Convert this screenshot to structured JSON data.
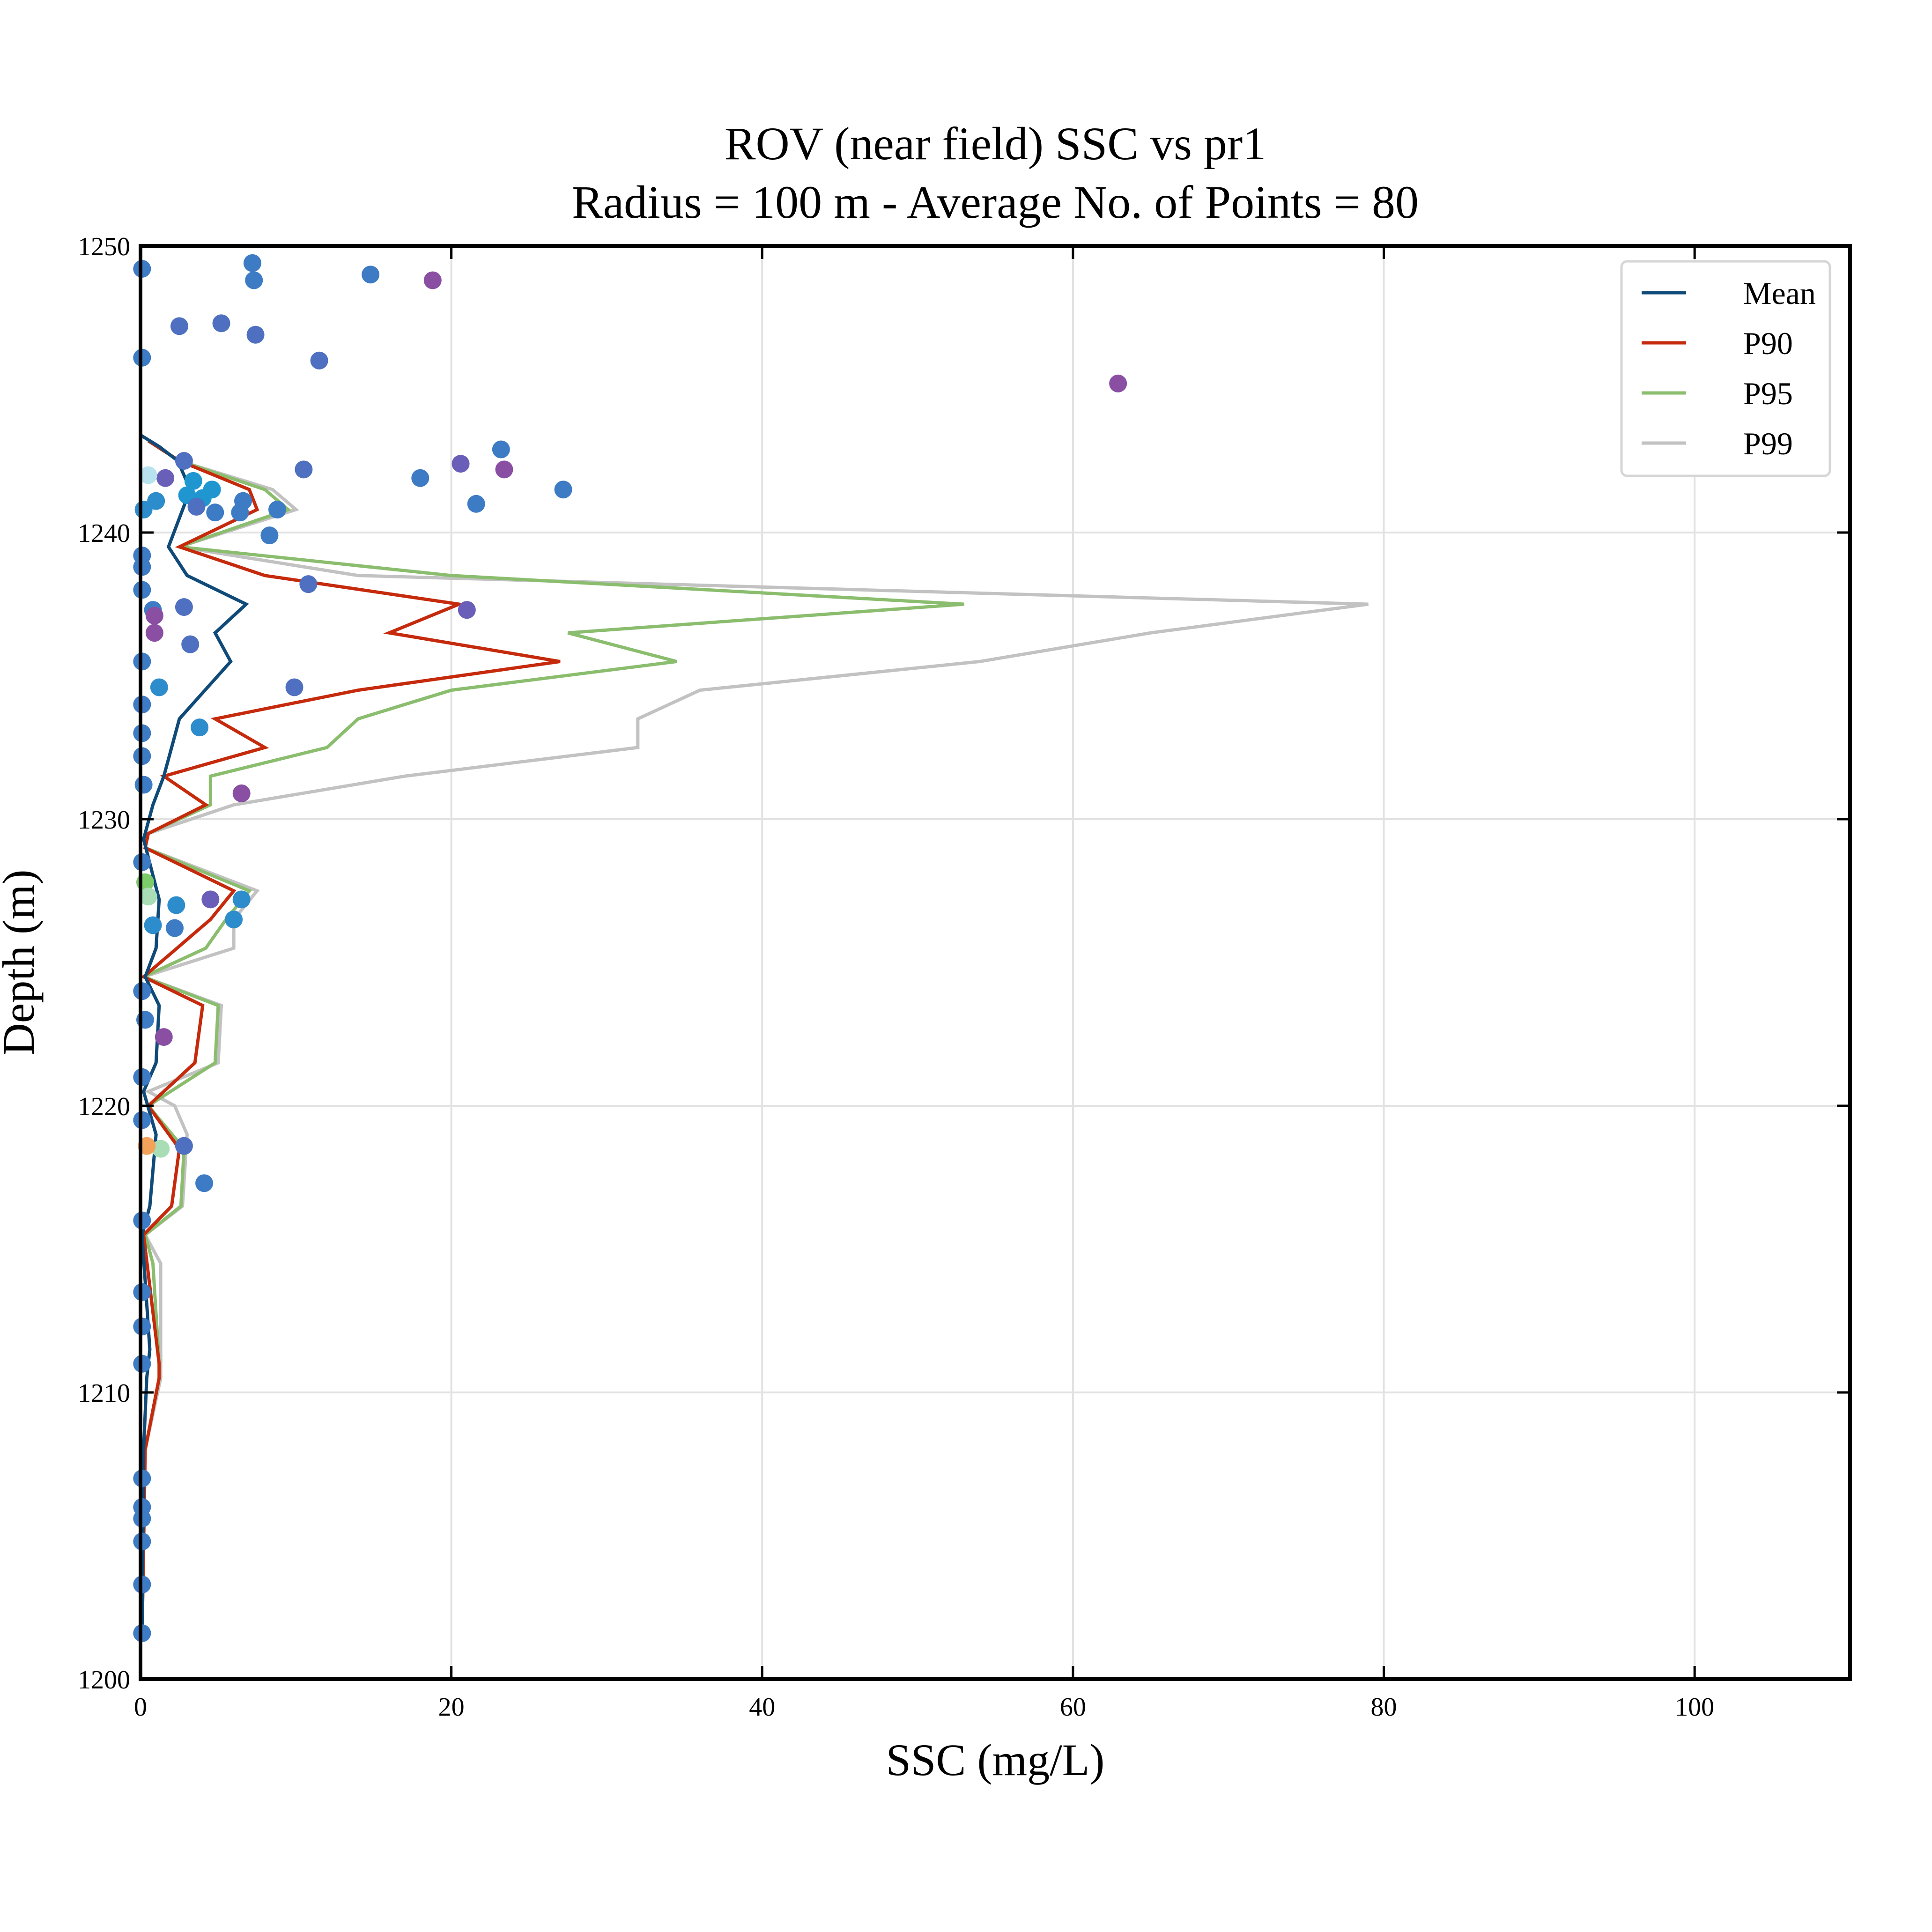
{
  "chart_data": {
    "type": "line",
    "title": "ROV (near field) SSC vs pr1",
    "subtitle": "Radius = 100 m - Average No. of Points = 80",
    "xlabel": "SSC (mg/L)",
    "ylabel": "Depth (m)",
    "xlim": [
      0,
      110
    ],
    "ylim": [
      1200,
      1250
    ],
    "x_ticks": [
      0,
      20,
      40,
      60,
      80,
      100
    ],
    "y_ticks": [
      1200,
      1210,
      1220,
      1230,
      1240,
      1250
    ],
    "grid": true,
    "legend_position": "top-right",
    "series": [
      {
        "name": "Mean",
        "color": "#0f4a78",
        "points": [
          [
            0.1,
            1201.5
          ],
          [
            0.2,
            1208
          ],
          [
            0.4,
            1210.5
          ],
          [
            0.6,
            1211.5
          ],
          [
            0.1,
            1215.5
          ],
          [
            0.6,
            1216.5
          ],
          [
            1.0,
            1219.0
          ],
          [
            0.2,
            1220.5
          ],
          [
            1.0,
            1221.5
          ],
          [
            1.2,
            1223.5
          ],
          [
            0.3,
            1224.5
          ],
          [
            1.0,
            1225.5
          ],
          [
            1.2,
            1227.2
          ],
          [
            0.2,
            1229.3
          ],
          [
            0.8,
            1230.5
          ],
          [
            1.5,
            1231.5
          ],
          [
            2.5,
            1233.5
          ],
          [
            5.8,
            1235.5
          ],
          [
            4.8,
            1236.5
          ],
          [
            6.8,
            1237.5
          ],
          [
            3.0,
            1238.5
          ],
          [
            1.8,
            1239.5
          ],
          [
            3.2,
            1241.5
          ],
          [
            2.4,
            1242.5
          ],
          [
            1.2,
            1243.0
          ],
          [
            0.0,
            1243.4
          ]
        ]
      },
      {
        "name": "P90",
        "color": "#c52a0c",
        "points": [
          [
            0.1,
            1201.5
          ],
          [
            0.3,
            1208
          ],
          [
            1.2,
            1210.5
          ],
          [
            1.2,
            1211.0
          ],
          [
            0.2,
            1215.5
          ],
          [
            2.0,
            1216.5
          ],
          [
            2.5,
            1218.5
          ],
          [
            0.5,
            1220.0
          ],
          [
            3.5,
            1221.5
          ],
          [
            4.0,
            1223.5
          ],
          [
            0.2,
            1224.5
          ],
          [
            4.5,
            1226.5
          ],
          [
            6.0,
            1227.5
          ],
          [
            0.3,
            1229.0
          ],
          [
            0.5,
            1229.5
          ],
          [
            4.2,
            1230.5
          ],
          [
            1.5,
            1231.5
          ],
          [
            8.0,
            1232.5
          ],
          [
            4.8,
            1233.5
          ],
          [
            14.0,
            1234.5
          ],
          [
            27.0,
            1235.5
          ],
          [
            16.0,
            1236.5
          ],
          [
            20.5,
            1237.5
          ],
          [
            8.0,
            1238.5
          ],
          [
            2.5,
            1239.5
          ],
          [
            7.5,
            1240.8
          ],
          [
            7.0,
            1241.5
          ],
          [
            2.5,
            1242.5
          ],
          [
            0.5,
            1243.2
          ]
        ]
      },
      {
        "name": "P95",
        "color": "#8bbd6e",
        "points": [
          [
            0.1,
            1201.5
          ],
          [
            0.3,
            1208
          ],
          [
            1.2,
            1210.5
          ],
          [
            1.2,
            1211.0
          ],
          [
            0.8,
            1214.5
          ],
          [
            0.3,
            1215.5
          ],
          [
            2.6,
            1216.5
          ],
          [
            2.8,
            1218.5
          ],
          [
            0.5,
            1220.0
          ],
          [
            4.8,
            1221.5
          ],
          [
            5.0,
            1223.5
          ],
          [
            0.2,
            1224.5
          ],
          [
            4.2,
            1225.5
          ],
          [
            5.5,
            1226.5
          ],
          [
            7.0,
            1227.5
          ],
          [
            0.3,
            1229.0
          ],
          [
            0.5,
            1229.5
          ],
          [
            4.5,
            1230.5
          ],
          [
            4.5,
            1231.5
          ],
          [
            12.0,
            1232.5
          ],
          [
            14.0,
            1233.5
          ],
          [
            20.0,
            1234.5
          ],
          [
            34.5,
            1235.5
          ],
          [
            27.5,
            1236.5
          ],
          [
            53.0,
            1237.5
          ],
          [
            20.0,
            1238.5
          ],
          [
            2.5,
            1239.5
          ],
          [
            9.5,
            1240.8
          ],
          [
            8.0,
            1241.5
          ],
          [
            2.5,
            1242.5
          ],
          [
            0.5,
            1243.2
          ]
        ]
      },
      {
        "name": "P99",
        "color": "#c2c2c2",
        "points": [
          [
            0.1,
            1201.5
          ],
          [
            0.3,
            1208
          ],
          [
            1.3,
            1210.5
          ],
          [
            1.3,
            1211.0
          ],
          [
            1.3,
            1214.5
          ],
          [
            0.3,
            1215.5
          ],
          [
            2.7,
            1216.5
          ],
          [
            3.0,
            1219.0
          ],
          [
            2.2,
            1220.0
          ],
          [
            0.5,
            1220.5
          ],
          [
            5.0,
            1221.5
          ],
          [
            5.2,
            1223.5
          ],
          [
            0.2,
            1224.5
          ],
          [
            6.0,
            1225.5
          ],
          [
            6.0,
            1226.5
          ],
          [
            7.5,
            1227.5
          ],
          [
            0.3,
            1229.0
          ],
          [
            0.5,
            1229.5
          ],
          [
            6.0,
            1230.5
          ],
          [
            17.0,
            1231.5
          ],
          [
            32.0,
            1232.5
          ],
          [
            32.0,
            1233.5
          ],
          [
            36.0,
            1234.5
          ],
          [
            54.0,
            1235.5
          ],
          [
            65.0,
            1236.5
          ],
          [
            79.0,
            1237.5
          ],
          [
            14.0,
            1238.5
          ],
          [
            2.5,
            1239.5
          ],
          [
            10.0,
            1240.8
          ],
          [
            8.5,
            1241.5
          ],
          [
            2.5,
            1242.5
          ],
          [
            0.5,
            1243.2
          ]
        ]
      }
    ],
    "scatter": [
      {
        "x": 7.2,
        "y": 1249.4,
        "color": "#3d7bc4"
      },
      {
        "x": 14.8,
        "y": 1249.0,
        "color": "#3d7bc4"
      },
      {
        "x": 18.8,
        "y": 1248.8,
        "color": "#8a4fa3"
      },
      {
        "x": 7.3,
        "y": 1248.8,
        "color": "#3d7bc4"
      },
      {
        "x": 5.2,
        "y": 1247.3,
        "color": "#4f6fc0"
      },
      {
        "x": 2.5,
        "y": 1247.2,
        "color": "#4f6fc0"
      },
      {
        "x": 7.4,
        "y": 1246.9,
        "color": "#4f6fc0"
      },
      {
        "x": 11.5,
        "y": 1246.0,
        "color": "#4f6fc0"
      },
      {
        "x": 62.9,
        "y": 1245.2,
        "color": "#8a4fa3"
      },
      {
        "x": 23.2,
        "y": 1242.9,
        "color": "#3d7bc4"
      },
      {
        "x": 20.6,
        "y": 1242.4,
        "color": "#6a5fb8"
      },
      {
        "x": 23.4,
        "y": 1242.2,
        "color": "#8a4fa3"
      },
      {
        "x": 10.5,
        "y": 1242.2,
        "color": "#4f6fc0"
      },
      {
        "x": 18.0,
        "y": 1241.9,
        "color": "#3d7bc4"
      },
      {
        "x": 27.2,
        "y": 1241.5,
        "color": "#3d7bc4"
      },
      {
        "x": 21.6,
        "y": 1241.0,
        "color": "#3d7bc4"
      },
      {
        "x": 2.8,
        "y": 1242.5,
        "color": "#4f6fc0"
      },
      {
        "x": 1.6,
        "y": 1241.9,
        "color": "#6a5fb8"
      },
      {
        "x": 0.5,
        "y": 1242.0,
        "color": "#b8e3ee"
      },
      {
        "x": 3.4,
        "y": 1241.8,
        "color": "#1f96d0"
      },
      {
        "x": 4.6,
        "y": 1241.5,
        "color": "#1f96d0"
      },
      {
        "x": 3.0,
        "y": 1241.3,
        "color": "#1f96d0"
      },
      {
        "x": 4.0,
        "y": 1241.2,
        "color": "#1f96d0"
      },
      {
        "x": 1.0,
        "y": 1241.1,
        "color": "#2d8ccc"
      },
      {
        "x": 3.6,
        "y": 1240.9,
        "color": "#4f6fc0"
      },
      {
        "x": 6.6,
        "y": 1241.1,
        "color": "#3d7bc4"
      },
      {
        "x": 4.8,
        "y": 1240.7,
        "color": "#3d7bc4"
      },
      {
        "x": 6.4,
        "y": 1240.7,
        "color": "#3d7bc4"
      },
      {
        "x": 8.8,
        "y": 1240.8,
        "color": "#3d7bc4"
      },
      {
        "x": 8.3,
        "y": 1239.9,
        "color": "#3d7bc4"
      },
      {
        "x": 0.2,
        "y": 1240.8,
        "color": "#2d8ccc"
      },
      {
        "x": 10.8,
        "y": 1238.2,
        "color": "#4f6fc0"
      },
      {
        "x": 21.0,
        "y": 1237.3,
        "color": "#6a5fb8"
      },
      {
        "x": 2.8,
        "y": 1237.4,
        "color": "#4f6fc0"
      },
      {
        "x": 0.8,
        "y": 1237.3,
        "color": "#3d7bc4"
      },
      {
        "x": 0.9,
        "y": 1237.1,
        "color": "#8a4fa3"
      },
      {
        "x": 0.9,
        "y": 1236.5,
        "color": "#8a4fa3"
      },
      {
        "x": 3.2,
        "y": 1236.1,
        "color": "#4f6fc0"
      },
      {
        "x": 9.9,
        "y": 1234.6,
        "color": "#4f6fc0"
      },
      {
        "x": 1.2,
        "y": 1234.6,
        "color": "#2d8ccc"
      },
      {
        "x": 3.8,
        "y": 1233.2,
        "color": "#2d8ccc"
      },
      {
        "x": 6.5,
        "y": 1230.9,
        "color": "#8a4fa3"
      },
      {
        "x": 0.2,
        "y": 1231.2,
        "color": "#3d7bc4"
      },
      {
        "x": 0.3,
        "y": 1227.8,
        "color": "#7ccc6a"
      },
      {
        "x": 0.5,
        "y": 1227.3,
        "color": "#a8ddb5"
      },
      {
        "x": 6.5,
        "y": 1227.2,
        "color": "#2d8ccc"
      },
      {
        "x": 4.5,
        "y": 1227.2,
        "color": "#6a5fb8"
      },
      {
        "x": 2.3,
        "y": 1227.0,
        "color": "#2d8ccc"
      },
      {
        "x": 6.0,
        "y": 1226.5,
        "color": "#2d8ccc"
      },
      {
        "x": 2.2,
        "y": 1226.2,
        "color": "#3d7bc4"
      },
      {
        "x": 0.8,
        "y": 1226.3,
        "color": "#2d8ccc"
      },
      {
        "x": 1.5,
        "y": 1222.4,
        "color": "#8a4fa3"
      },
      {
        "x": 0.3,
        "y": 1223.0,
        "color": "#3d7bc4"
      },
      {
        "x": 2.8,
        "y": 1218.6,
        "color": "#4f6fc0"
      },
      {
        "x": 1.3,
        "y": 1218.5,
        "color": "#a8ddb5"
      },
      {
        "x": 0.4,
        "y": 1218.6,
        "color": "#f4a259"
      },
      {
        "x": 4.1,
        "y": 1217.3,
        "color": "#3d7bc4"
      },
      {
        "x": 0.1,
        "y": 1213.5,
        "color": "#3d7bc4"
      },
      {
        "x": 0.1,
        "y": 1212.3,
        "color": "#3d7bc4"
      },
      {
        "x": 0.1,
        "y": 1207.0,
        "color": "#3d7bc4"
      },
      {
        "x": 0.1,
        "y": 1206.0,
        "color": "#3d7bc4"
      },
      {
        "x": 0.1,
        "y": 1205.6,
        "color": "#3d7bc4"
      },
      {
        "x": 0.1,
        "y": 1204.8,
        "color": "#3d7bc4"
      },
      {
        "x": 0.1,
        "y": 1203.3,
        "color": "#3d7bc4"
      },
      {
        "x": 0.1,
        "y": 1201.6,
        "color": "#3d7bc4"
      },
      {
        "x": 0.1,
        "y": 1246.1,
        "color": "#3d7bc4"
      },
      {
        "x": 0.1,
        "y": 1249.2,
        "color": "#3d7bc4"
      },
      {
        "x": 0.1,
        "y": 1239.2,
        "color": "#3d7bc4"
      },
      {
        "x": 0.1,
        "y": 1238.8,
        "color": "#3d7bc4"
      },
      {
        "x": 0.1,
        "y": 1238.0,
        "color": "#3d7bc4"
      },
      {
        "x": 0.1,
        "y": 1235.5,
        "color": "#3d7bc4"
      },
      {
        "x": 0.1,
        "y": 1234.0,
        "color": "#3d7bc4"
      },
      {
        "x": 0.1,
        "y": 1233.0,
        "color": "#3d7bc4"
      },
      {
        "x": 0.1,
        "y": 1232.2,
        "color": "#3d7bc4"
      },
      {
        "x": 0.1,
        "y": 1228.5,
        "color": "#3d7bc4"
      },
      {
        "x": 0.1,
        "y": 1224.0,
        "color": "#3d7bc4"
      },
      {
        "x": 0.1,
        "y": 1221.0,
        "color": "#3d7bc4"
      },
      {
        "x": 0.1,
        "y": 1219.5,
        "color": "#3d7bc4"
      },
      {
        "x": 0.1,
        "y": 1216.0,
        "color": "#3d7bc4"
      },
      {
        "x": 0.1,
        "y": 1211.0,
        "color": "#3d7bc4"
      }
    ]
  }
}
